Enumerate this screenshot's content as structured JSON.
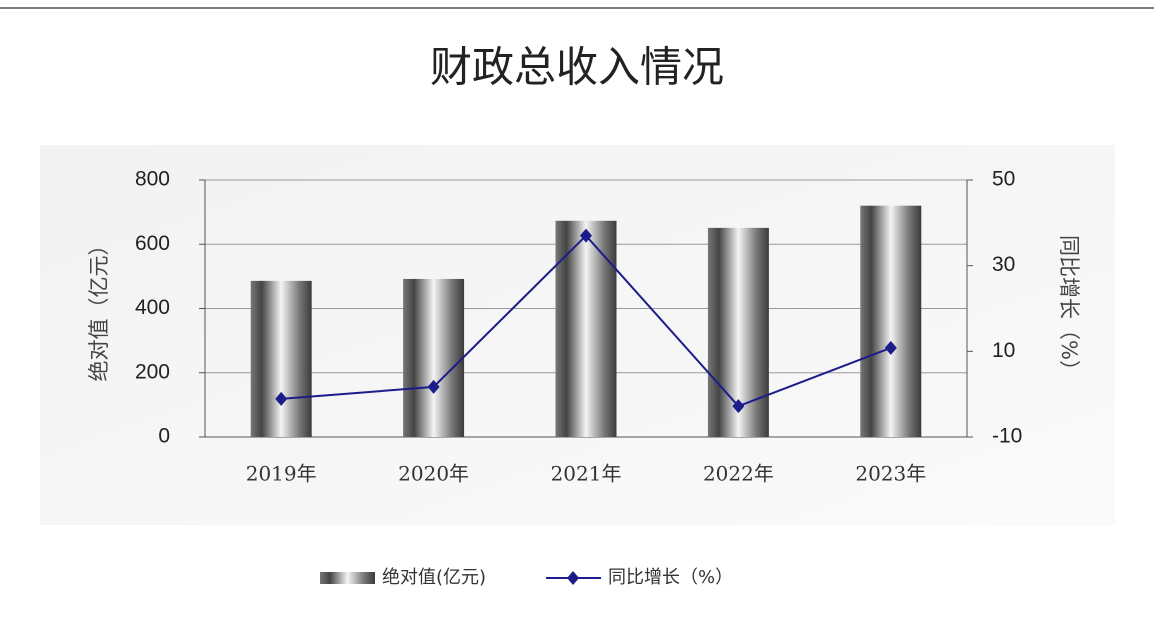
{
  "chart_data": {
    "type": "bar",
    "title": "财政总收入情况",
    "categories": [
      "2019年",
      "2020年",
      "2021年",
      "2022年",
      "2023年"
    ],
    "series": [
      {
        "name": "绝对值(亿元)",
        "type": "bar",
        "color": "#777777",
        "values": [
          486,
          492,
          673,
          651,
          720
        ]
      },
      {
        "name": "同比增长（%）",
        "type": "line",
        "axis": "y2",
        "color": "#1c1c8a",
        "values": [
          -1.1,
          1.7,
          37,
          -2.8,
          10.8
        ]
      }
    ],
    "ylabel": "绝对值（亿元）",
    "y2label": "同比增长（%）",
    "ylim": [
      0,
      800
    ],
    "yticks": [
      0,
      200,
      400,
      600,
      800
    ],
    "y2lim": [
      -10,
      50
    ],
    "y2ticks": [
      -10,
      10,
      30,
      50
    ],
    "grid": true,
    "legend": "bottom"
  }
}
